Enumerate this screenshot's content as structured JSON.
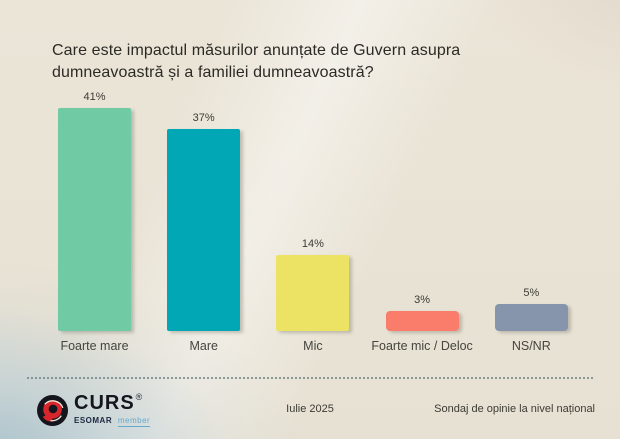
{
  "title": "Care este impactul măsurilor anunțate de Guvern asupra dumneavoastră și a familiei dumneavoastră?",
  "chart_data": {
    "type": "bar",
    "title": "Care este impactul măsurilor anunțate de Guvern asupra dumneavoastră și a familiei dumneavoastră?",
    "categories": [
      "Foarte mare",
      "Mare",
      "Mic",
      "Foarte mic / Deloc",
      "NS/NR"
    ],
    "values": [
      41,
      37,
      14,
      3,
      5
    ],
    "value_labels": [
      "41%",
      "37%",
      "14%",
      "3%",
      "5%"
    ],
    "bar_colors": [
      "#70cba5",
      "#01a7b5",
      "#ece263",
      "#fa7d6c",
      "#8695ac"
    ],
    "xlabel": "",
    "ylabel": "",
    "ylim": [
      0,
      45
    ],
    "grid": false,
    "legend": false,
    "value_label_position": "above-bar"
  },
  "footer": {
    "logo": {
      "brand": "CURS",
      "registered": "®",
      "org": "ESOMAR",
      "membership": "member",
      "icon": "curs-swirl-logo"
    },
    "date": "Iulie 2025",
    "note": "Sondaj de opinie la nivel național"
  },
  "colors": {
    "background_top": "#ebe5d8",
    "background_bottom_left": "#c8d8dd",
    "title_text": "#2c2a25",
    "label_text": "#45443e",
    "divider": "#6b7f83",
    "logo_red": "#d8262c",
    "logo_dark": "#15151e",
    "member_blue": "#67a9cc"
  }
}
